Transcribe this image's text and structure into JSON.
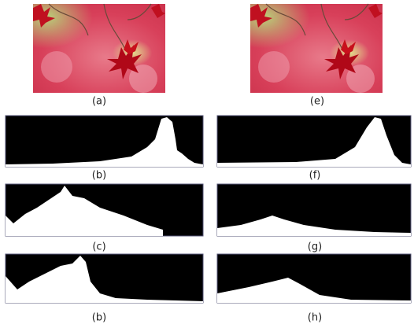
{
  "left_column": [
    "(a)",
    "(b)",
    "(c)",
    "(b)"
  ],
  "right_column": [
    "(e)",
    "(f)",
    "(g)",
    "(h)"
  ]
}
